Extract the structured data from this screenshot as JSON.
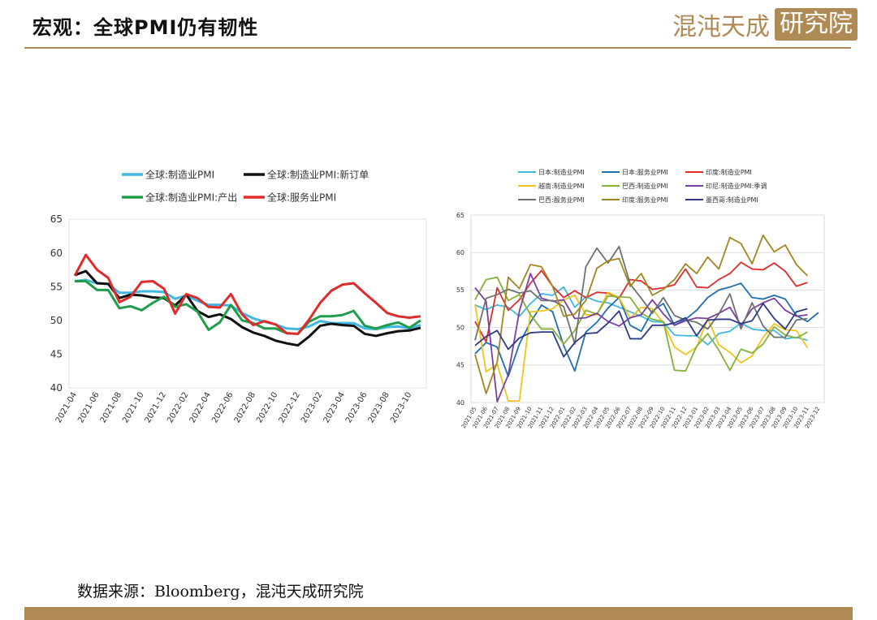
{
  "header": {
    "title": "宏观：全球PMI仍有韧性",
    "brand": "混沌天成",
    "brand_box": "研究院"
  },
  "footer": {
    "source": "数据来源：Bloomberg，混沌天成研究院"
  },
  "colors": {
    "accent": "#b08a55"
  },
  "chart_data": [
    {
      "type": "line",
      "title": "",
      "xlabel": "",
      "ylabel": "",
      "ylim": [
        40,
        65
      ],
      "yticks": [
        40,
        45,
        50,
        55,
        60,
        65
      ],
      "grid": false,
      "legend_position": "top",
      "x": [
        "2021-04",
        "2021-05",
        "2021-06",
        "2021-07",
        "2021-08",
        "2021-09",
        "2021-10",
        "2021-11",
        "2021-12",
        "2022-01",
        "2022-02",
        "2022-03",
        "2022-04",
        "2022-05",
        "2022-06",
        "2022-07",
        "2022-08",
        "2022-09",
        "2022-10",
        "2022-11",
        "2022-12",
        "2023-01",
        "2023-02",
        "2023-03",
        "2023-04",
        "2023-05",
        "2023-06",
        "2023-07",
        "2023-08",
        "2023-09",
        "2023-10",
        "2023-11"
      ],
      "xtick_labels": [
        "2021-04",
        "2021-06",
        "2021-08",
        "2021-10",
        "2021-12",
        "2022-02",
        "2022-04",
        "2022-06",
        "2022-08",
        "2022-10",
        "2022-12",
        "2023-02",
        "2023-04",
        "2023-06",
        "2023-08",
        "2023-10"
      ],
      "series": [
        {
          "name": "全球:制造业PMI",
          "color": "#41b8e2",
          "values": [
            55.8,
            56.0,
            55.5,
            55.4,
            54.1,
            54.1,
            54.3,
            54.3,
            54.2,
            53.2,
            53.7,
            52.9,
            52.3,
            52.3,
            52.2,
            51.1,
            50.3,
            49.8,
            49.4,
            48.8,
            48.7,
            49.1,
            49.9,
            49.6,
            49.6,
            49.6,
            48.8,
            48.7,
            49.0,
            49.1,
            48.8,
            49.3
          ]
        },
        {
          "name": "全球:制造业PMI:新订单",
          "color": "#111111",
          "values": [
            56.7,
            57.3,
            55.5,
            55.4,
            53.3,
            53.8,
            53.7,
            53.4,
            53.3,
            52.2,
            53.8,
            51.4,
            50.5,
            50.9,
            50.2,
            49.0,
            48.2,
            47.7,
            47.0,
            46.6,
            46.3,
            47.6,
            49.2,
            49.5,
            49.3,
            49.2,
            48.0,
            47.7,
            48.1,
            48.4,
            48.5,
            48.9
          ]
        },
        {
          "name": "全球:制造业PMI:产出",
          "color": "#1f9e4a",
          "values": [
            55.8,
            55.8,
            54.5,
            54.5,
            51.8,
            52.1,
            51.5,
            52.6,
            53.5,
            52.0,
            52.4,
            51.3,
            48.6,
            49.7,
            52.3,
            50.0,
            49.6,
            48.8,
            48.8,
            48.1,
            48.0,
            49.8,
            50.6,
            50.6,
            50.8,
            51.4,
            49.2,
            48.8,
            49.3,
            49.7,
            48.9,
            50.0
          ]
        },
        {
          "name": "全球:服务业PMI",
          "color": "#e02b2b",
          "values": [
            56.6,
            59.7,
            57.5,
            56.3,
            52.7,
            53.5,
            55.7,
            55.8,
            54.7,
            51.0,
            53.9,
            53.3,
            52.0,
            51.9,
            53.9,
            50.9,
            49.3,
            49.9,
            49.4,
            48.1,
            48.0,
            50.1,
            52.6,
            54.4,
            55.3,
            55.5,
            54.0,
            52.6,
            51.1,
            50.6,
            50.4,
            50.6
          ]
        }
      ]
    },
    {
      "type": "line",
      "title": "",
      "xlabel": "",
      "ylabel": "",
      "ylim": [
        40,
        65
      ],
      "yticks": [
        40,
        45,
        50,
        55,
        60,
        65
      ],
      "grid": true,
      "legend_position": "top",
      "x": [
        "2021-05",
        "2021-06",
        "2021-07",
        "2021-08",
        "2021-09",
        "2021-10",
        "2021-11",
        "2021-12",
        "2022-01",
        "2022-02",
        "2022-03",
        "2022-04",
        "2022-05",
        "2022-06",
        "2022-07",
        "2022-08",
        "2022-09",
        "2022-10",
        "2022-11",
        "2022-12",
        "2023-01",
        "2023-02",
        "2023-03",
        "2023-04",
        "2023-05",
        "2023-06",
        "2023-07",
        "2023-08",
        "2023-09",
        "2023-10",
        "2023-11",
        "2023-12"
      ],
      "xtick_labels": [
        "2021-05",
        "2021-06",
        "2021-07",
        "2021-08",
        "2021-09",
        "2021-10",
        "2021-11",
        "2021-12",
        "2022-01",
        "2022-02",
        "2022-03",
        "2022-04",
        "2022-05",
        "2022-06",
        "2022-07",
        "2022-08",
        "2022-09",
        "2022-10",
        "2022-11",
        "2022-12",
        "2023-01",
        "2023-02",
        "2023-03",
        "2023-04",
        "2023-05",
        "2023-06",
        "2023-07",
        "2023-08",
        "2023-09",
        "2023-10",
        "2023-11",
        "2023-12"
      ],
      "series": [
        {
          "name": "日本:制造业PMI",
          "color": "#41b8e2",
          "values": [
            53.0,
            52.4,
            53.0,
            52.7,
            51.5,
            53.2,
            54.5,
            54.3,
            55.4,
            52.7,
            54.1,
            53.5,
            53.3,
            52.7,
            52.1,
            51.5,
            50.8,
            50.7,
            49.0,
            48.9,
            48.9,
            47.7,
            49.2,
            49.5,
            50.6,
            49.8,
            49.6,
            49.6,
            48.5,
            48.7,
            48.3,
            null
          ]
        },
        {
          "name": "日本:服务业PMI",
          "color": "#1f6fae",
          "values": [
            46.5,
            48.0,
            47.4,
            43.5,
            47.8,
            50.7,
            53.0,
            52.1,
            47.6,
            44.2,
            49.4,
            50.7,
            52.6,
            54.0,
            50.3,
            49.5,
            52.2,
            53.2,
            50.3,
            51.1,
            52.3,
            54.0,
            55.0,
            55.4,
            55.9,
            54.0,
            53.8,
            54.3,
            53.8,
            51.6,
            50.8,
            52.0
          ]
        },
        {
          "name": "印度:制造业PMI",
          "color": "#e02b2b",
          "values": [
            50.8,
            48.1,
            55.3,
            52.3,
            53.7,
            55.9,
            57.6,
            55.5,
            54.0,
            54.9,
            54.0,
            54.7,
            54.6,
            53.9,
            56.4,
            56.2,
            55.1,
            55.3,
            55.7,
            57.8,
            55.4,
            55.3,
            56.4,
            57.2,
            58.7,
            57.8,
            57.7,
            58.6,
            57.5,
            55.5,
            56.0,
            null
          ]
        },
        {
          "name": "越南:制造业PMI",
          "color": "#f0c419",
          "values": [
            53.1,
            44.1,
            45.1,
            40.2,
            40.2,
            52.1,
            52.2,
            52.5,
            53.7,
            54.3,
            51.7,
            51.7,
            54.7,
            54.0,
            51.2,
            52.7,
            52.5,
            50.6,
            47.4,
            46.4,
            47.4,
            51.2,
            47.7,
            46.7,
            45.3,
            46.2,
            48.7,
            50.5,
            49.7,
            49.6,
            47.3,
            null
          ]
        },
        {
          "name": "巴西:制造业PMI",
          "color": "#86b23a",
          "values": [
            53.7,
            56.4,
            56.7,
            53.6,
            54.4,
            51.7,
            49.8,
            49.8,
            47.8,
            49.6,
            52.3,
            51.8,
            54.2,
            54.1,
            54.0,
            51.9,
            51.1,
            50.8,
            44.3,
            44.2,
            47.5,
            49.2,
            47.0,
            44.3,
            47.1,
            46.6,
            47.8,
            50.1,
            49.0,
            48.6,
            49.4,
            null
          ]
        },
        {
          "name": "印尼:制造业PMI:季调",
          "color": "#7b3fa0",
          "values": [
            55.3,
            53.5,
            40.1,
            43.7,
            52.2,
            57.2,
            53.9,
            53.5,
            53.7,
            51.2,
            51.3,
            51.9,
            50.8,
            50.2,
            51.3,
            51.7,
            53.7,
            51.8,
            50.3,
            50.9,
            51.3,
            51.2,
            51.9,
            52.7,
            50.3,
            52.5,
            53.3,
            53.9,
            52.3,
            51.5,
            51.7,
            null
          ]
        },
        {
          "name": "巴西:服务业PMI",
          "color": "#707070",
          "values": [
            48.3,
            53.9,
            54.4,
            55.1,
            54.6,
            54.9,
            53.6,
            53.6,
            52.8,
            47.8,
            58.1,
            60.6,
            58.6,
            60.8,
            55.8,
            53.9,
            51.9,
            54.0,
            51.6,
            51.0,
            50.7,
            49.8,
            51.8,
            54.5,
            49.8,
            53.3,
            50.2,
            48.7,
            48.7,
            51.0,
            51.2,
            null
          ]
        },
        {
          "name": "印度:服务业PMI",
          "color": "#a1861f",
          "values": [
            46.4,
            41.2,
            45.4,
            56.7,
            55.2,
            58.4,
            58.1,
            55.5,
            51.5,
            51.8,
            53.6,
            57.9,
            58.9,
            59.2,
            55.5,
            57.2,
            54.3,
            55.1,
            56.4,
            58.5,
            57.2,
            59.4,
            57.8,
            62.0,
            61.2,
            58.5,
            62.3,
            60.1,
            61.0,
            58.4,
            56.9,
            null
          ]
        },
        {
          "name": "墨西哥:制造业PMI",
          "color": "#2e3a87",
          "values": [
            47.6,
            48.8,
            49.6,
            47.1,
            48.6,
            49.3,
            49.4,
            49.4,
            46.1,
            48.0,
            49.2,
            49.3,
            50.6,
            52.2,
            48.5,
            48.5,
            50.3,
            50.3,
            50.6,
            51.3,
            48.9,
            51.0,
            51.1,
            51.1,
            50.5,
            50.9,
            53.2,
            51.2,
            49.8,
            52.1,
            52.5,
            null
          ]
        }
      ]
    }
  ]
}
